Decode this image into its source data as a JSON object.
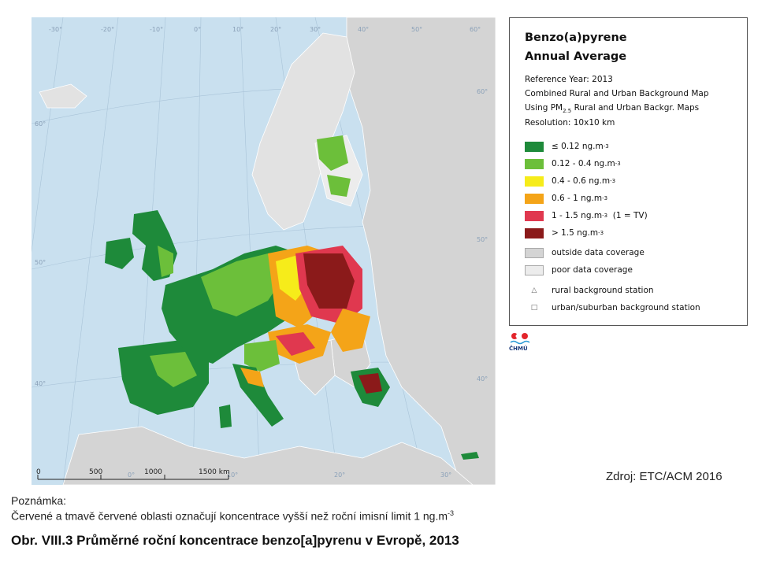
{
  "map": {
    "lon_labels_top": [
      "-30°",
      "-20°",
      "-10°",
      "0°",
      "10°",
      "20°",
      "30°",
      "40°",
      "50°",
      "60°"
    ],
    "lat_labels_left": [
      "60°",
      "50°",
      "40°"
    ],
    "lat_labels_right": [
      "60°",
      "50°",
      "40°"
    ],
    "lon_labels_bottom": [
      "0°",
      "10°",
      "20°",
      "30°"
    ],
    "scalebar": {
      "labels": [
        "0",
        "500",
        "1000",
        "1500 km"
      ]
    }
  },
  "legend": {
    "title_line1": "Benzo(a)pyrene",
    "title_line2": "Annual Average",
    "info": [
      "Reference Year: 2013",
      "Combined Rural and Urban Background Map",
      "Using PM",
      "Resolution: 10x10 km"
    ],
    "info_pm_sub": "2.5",
    "info_pm_rest": " Rural and Urban Backgr. Maps",
    "classes": [
      {
        "label": "≤ 0.12 ng.m",
        "sup": "-3",
        "suffix": "",
        "color": "#1e8a3a"
      },
      {
        "label": "0.12 - 0.4 ng.m",
        "sup": "-3",
        "suffix": "",
        "color": "#6cbf3a"
      },
      {
        "label": "0.4 - 0.6 ng.m",
        "sup": "-3",
        "suffix": "",
        "color": "#f6ec1a"
      },
      {
        "label": "0.6 - 1 ng.m",
        "sup": "-3",
        "suffix": "",
        "color": "#f4a418"
      },
      {
        "label": "1 - 1.5 ng.m",
        "sup": "-3",
        "suffix": "  (1 = TV)",
        "color": "#e0384f"
      },
      {
        "label": "> 1.5 ng.m",
        "sup": "-3",
        "suffix": "",
        "color": "#8b1a1a"
      },
      {
        "label": "outside data coverage",
        "sup": "",
        "suffix": "",
        "color": "#d4d4d4"
      },
      {
        "label": "poor data coverage",
        "sup": "",
        "suffix": "",
        "color": "#ececec"
      }
    ],
    "stations": [
      {
        "symbol": "△",
        "label": "rural background station"
      },
      {
        "symbol": "□",
        "label": "urban/suburban background station"
      }
    ]
  },
  "logo_text": "ČHMÚ",
  "source": "Zdroj: ETC/ACM 2016",
  "note_label": "Poznámka:",
  "note_text": "Červené a tmavě červené oblasti označují koncentrace vyšší než roční imisní limit 1 ng.m",
  "note_sup": "-3",
  "caption": "Obr. VIII.3  Průměrné roční koncentrace benzo[a]pyrenu v Evropě, 2013"
}
